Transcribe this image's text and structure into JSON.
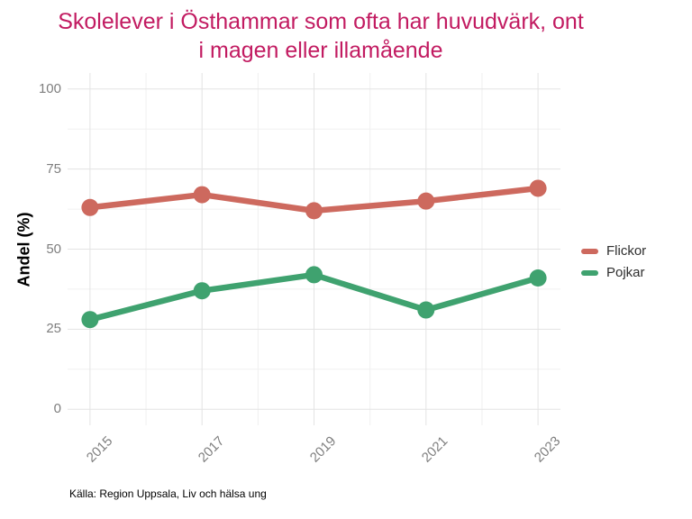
{
  "chart_data": {
    "type": "line",
    "title": "Skolelever i Östhammar som ofta har huvudvärk, ont i magen eller illamående",
    "title_lines": [
      "Skolelever i Östhammar som ofta har huvudvärk, ont",
      "i magen eller illamående"
    ],
    "title_color": "#C21B61",
    "xlabel": "",
    "ylabel": "Andel (%)",
    "caption": "Källa: Region Uppsala, Liv och hälsa ung",
    "categories": [
      "2015",
      "2017",
      "2019",
      "2021",
      "2023"
    ],
    "series": [
      {
        "name": "Flickor",
        "color": "#CD695E",
        "values": [
          63,
          67,
          62,
          65,
          69
        ]
      },
      {
        "name": "Pojkar",
        "color": "#3FA26F",
        "values": [
          28,
          37,
          42,
          31,
          41
        ]
      }
    ],
    "y_ticks": [
      0,
      25,
      50,
      75,
      100
    ],
    "y_minor_ticks": [
      12.5,
      37.5,
      62.5,
      87.5
    ],
    "ylim": [
      0,
      100
    ],
    "grid": "major-and-minor",
    "legend_position": "right",
    "axis_text_color": "#7E7E7E",
    "grid_major_color": "#E3E3E3",
    "grid_minor_color": "#F0F0F0",
    "point_radius": 9.5,
    "line_width": 6.5
  }
}
